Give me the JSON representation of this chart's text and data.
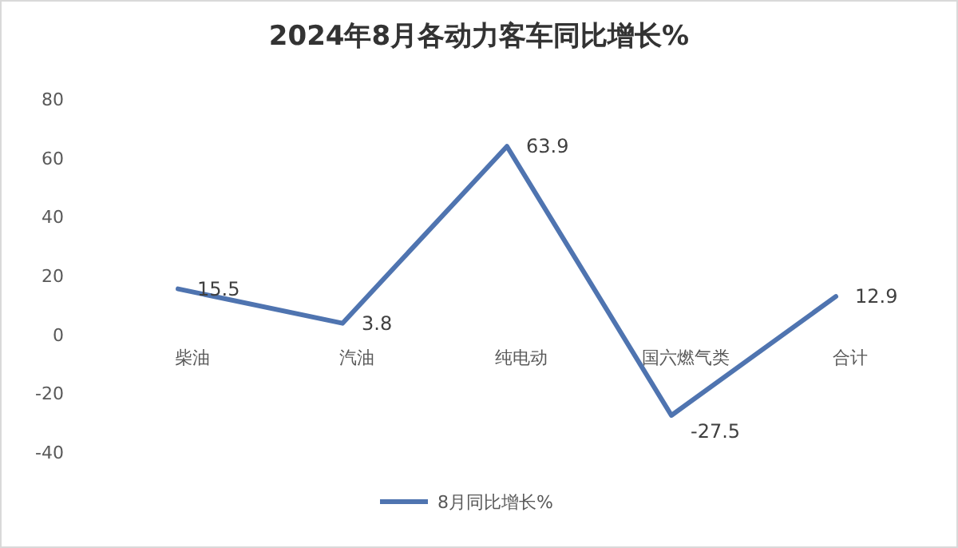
{
  "chart_data": {
    "type": "line",
    "title": "2024年8月各动力客车同比增长%",
    "categories": [
      "柴油",
      "汽油",
      "纯电动",
      "国六燃气类",
      "合计"
    ],
    "series": [
      {
        "name": "8月同比增长%",
        "color": "#4f74b0",
        "values": [
          15.5,
          3.8,
          63.9,
          -27.5,
          12.9
        ]
      }
    ],
    "ylim": [
      -40,
      80
    ],
    "yticks": [
      -40,
      -20,
      0,
      20,
      40,
      60,
      80
    ],
    "data_labels": true,
    "legend": "bottom",
    "grid": false,
    "line_style": "solid",
    "marker": "none"
  }
}
